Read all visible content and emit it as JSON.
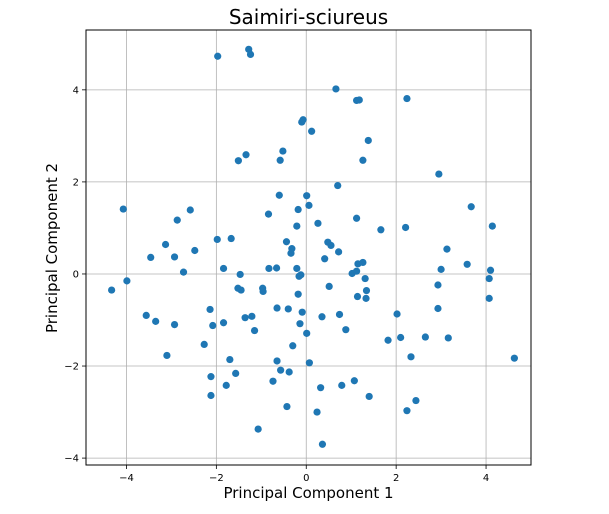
{
  "chart_data": {
    "type": "scatter",
    "title": "Saimiri-sciureus",
    "xlabel": "Principal Component 1",
    "ylabel": "Principal Component 2",
    "xlim": [
      -4.9,
      5.0
    ],
    "ylim": [
      -4.15,
      5.3
    ],
    "xticks": [
      -4,
      -2,
      0,
      2,
      4
    ],
    "yticks": [
      -4,
      -2,
      0,
      2,
      4
    ],
    "grid": true,
    "marker_color": "#1f77b4",
    "points": [
      {
        "x": -1.97,
        "y": 4.73
      },
      {
        "x": -1.28,
        "y": 4.88
      },
      {
        "x": -1.24,
        "y": 4.77
      },
      {
        "x": 0.66,
        "y": 4.02
      },
      {
        "x": 1.12,
        "y": 3.77
      },
      {
        "x": 1.18,
        "y": 3.78
      },
      {
        "x": 2.24,
        "y": 3.81
      },
      {
        "x": -0.1,
        "y": 3.3
      },
      {
        "x": -0.07,
        "y": 3.35
      },
      {
        "x": 0.12,
        "y": 3.1
      },
      {
        "x": 1.38,
        "y": 2.9
      },
      {
        "x": -1.34,
        "y": 2.59
      },
      {
        "x": -1.51,
        "y": 2.46
      },
      {
        "x": -0.58,
        "y": 2.47
      },
      {
        "x": -0.52,
        "y": 2.67
      },
      {
        "x": 1.26,
        "y": 2.47
      },
      {
        "x": 2.95,
        "y": 2.17
      },
      {
        "x": 0.7,
        "y": 1.92
      },
      {
        "x": -0.6,
        "y": 1.71
      },
      {
        "x": 0.01,
        "y": 1.7
      },
      {
        "x": 3.67,
        "y": 1.46
      },
      {
        "x": -4.07,
        "y": 1.41
      },
      {
        "x": -2.58,
        "y": 1.39
      },
      {
        "x": -0.18,
        "y": 1.4
      },
      {
        "x": 0.06,
        "y": 1.49
      },
      {
        "x": -0.84,
        "y": 1.3
      },
      {
        "x": 1.12,
        "y": 1.21
      },
      {
        "x": -2.87,
        "y": 1.17
      },
      {
        "x": 0.26,
        "y": 1.1
      },
      {
        "x": 2.21,
        "y": 1.01
      },
      {
        "x": -0.21,
        "y": 1.04
      },
      {
        "x": 1.66,
        "y": 0.96
      },
      {
        "x": 4.14,
        "y": 1.04
      },
      {
        "x": -1.98,
        "y": 0.75
      },
      {
        "x": -1.67,
        "y": 0.77
      },
      {
        "x": -0.44,
        "y": 0.7
      },
      {
        "x": 0.48,
        "y": 0.69
      },
      {
        "x": 0.55,
        "y": 0.62
      },
      {
        "x": -3.13,
        "y": 0.64
      },
      {
        "x": -2.48,
        "y": 0.51
      },
      {
        "x": -0.32,
        "y": 0.55
      },
      {
        "x": -0.34,
        "y": 0.45
      },
      {
        "x": 0.72,
        "y": 0.48
      },
      {
        "x": 3.13,
        "y": 0.54
      },
      {
        "x": -3.46,
        "y": 0.36
      },
      {
        "x": -2.93,
        "y": 0.37
      },
      {
        "x": 0.41,
        "y": 0.33
      },
      {
        "x": 1.15,
        "y": 0.22
      },
      {
        "x": 1.26,
        "y": 0.25
      },
      {
        "x": 3.58,
        "y": 0.21
      },
      {
        "x": -0.83,
        "y": 0.12
      },
      {
        "x": -0.66,
        "y": 0.13
      },
      {
        "x": -1.84,
        "y": 0.12
      },
      {
        "x": -0.21,
        "y": 0.12
      },
      {
        "x": 3.0,
        "y": 0.1
      },
      {
        "x": 4.1,
        "y": 0.08
      },
      {
        "x": -2.73,
        "y": 0.04
      },
      {
        "x": -1.47,
        "y": -0.01
      },
      {
        "x": -0.12,
        "y": -0.02
      },
      {
        "x": -0.16,
        "y": -0.05
      },
      {
        "x": 1.02,
        "y": 0.01
      },
      {
        "x": 1.31,
        "y": -0.1
      },
      {
        "x": 1.12,
        "y": 0.06
      },
      {
        "x": 4.07,
        "y": -0.1
      },
      {
        "x": -3.99,
        "y": -0.15
      },
      {
        "x": -4.33,
        "y": -0.35
      },
      {
        "x": -1.52,
        "y": -0.31
      },
      {
        "x": -1.45,
        "y": -0.35
      },
      {
        "x": -0.97,
        "y": -0.31
      },
      {
        "x": -0.96,
        "y": -0.38
      },
      {
        "x": 0.51,
        "y": -0.27
      },
      {
        "x": 1.34,
        "y": -0.36
      },
      {
        "x": 2.93,
        "y": -0.24
      },
      {
        "x": -0.18,
        "y": -0.44
      },
      {
        "x": 1.14,
        "y": -0.49
      },
      {
        "x": 1.33,
        "y": -0.53
      },
      {
        "x": 4.07,
        "y": -0.53
      },
      {
        "x": -2.14,
        "y": -0.77
      },
      {
        "x": -0.65,
        "y": -0.74
      },
      {
        "x": -0.4,
        "y": -0.76
      },
      {
        "x": -0.09,
        "y": -0.83
      },
      {
        "x": 0.35,
        "y": -0.93
      },
      {
        "x": 0.74,
        "y": -0.88
      },
      {
        "x": 2.02,
        "y": -0.87
      },
      {
        "x": 2.93,
        "y": -0.75
      },
      {
        "x": -3.56,
        "y": -0.9
      },
      {
        "x": -3.35,
        "y": -1.03
      },
      {
        "x": -2.93,
        "y": -1.1
      },
      {
        "x": -2.08,
        "y": -1.12
      },
      {
        "x": -1.84,
        "y": -1.06
      },
      {
        "x": -1.36,
        "y": -0.95
      },
      {
        "x": -1.21,
        "y": -0.92
      },
      {
        "x": -0.14,
        "y": -1.08
      },
      {
        "x": 0.01,
        "y": -1.29
      },
      {
        "x": -1.15,
        "y": -1.23
      },
      {
        "x": 0.88,
        "y": -1.21
      },
      {
        "x": 2.1,
        "y": -1.38
      },
      {
        "x": 2.65,
        "y": -1.37
      },
      {
        "x": 3.16,
        "y": -1.39
      },
      {
        "x": 1.82,
        "y": -1.44
      },
      {
        "x": -2.27,
        "y": -1.53
      },
      {
        "x": -0.3,
        "y": -1.56
      },
      {
        "x": -3.1,
        "y": -1.77
      },
      {
        "x": -1.7,
        "y": -1.86
      },
      {
        "x": -0.65,
        "y": -1.89
      },
      {
        "x": 2.33,
        "y": -1.8
      },
      {
        "x": 4.63,
        "y": -1.83
      },
      {
        "x": 0.07,
        "y": -1.93
      },
      {
        "x": -1.57,
        "y": -2.16
      },
      {
        "x": -2.12,
        "y": -2.23
      },
      {
        "x": -0.57,
        "y": -2.09
      },
      {
        "x": -0.38,
        "y": -2.13
      },
      {
        "x": -0.74,
        "y": -2.33
      },
      {
        "x": 1.07,
        "y": -2.32
      },
      {
        "x": -1.78,
        "y": -2.42
      },
      {
        "x": 0.79,
        "y": -2.42
      },
      {
        "x": 0.32,
        "y": -2.47
      },
      {
        "x": -2.12,
        "y": -2.64
      },
      {
        "x": 1.4,
        "y": -2.66
      },
      {
        "x": 2.44,
        "y": -2.75
      },
      {
        "x": -0.43,
        "y": -2.88
      },
      {
        "x": 0.24,
        "y": -3.0
      },
      {
        "x": 2.24,
        "y": -2.97
      },
      {
        "x": -1.07,
        "y": -3.37
      },
      {
        "x": 0.36,
        "y": -3.7
      }
    ]
  }
}
